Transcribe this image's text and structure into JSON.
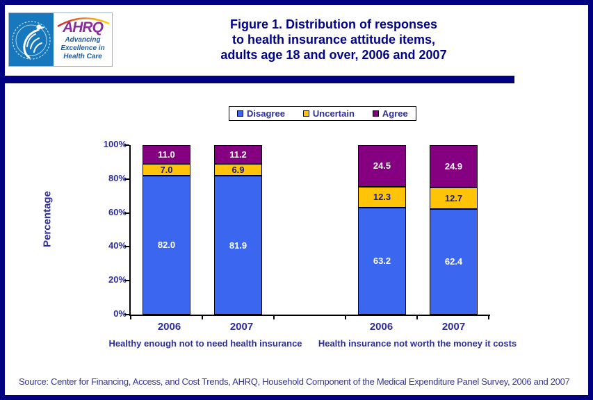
{
  "header": {
    "logo": {
      "hhs_seal": "Department of Health & Human Services USA seal",
      "ahrq_acronym": "AHRQ",
      "ahrq_tagline_lines": [
        "Advancing",
        "Excellence in",
        "Health Care"
      ]
    },
    "title_lines": [
      "Figure 1. Distribution of responses",
      "to health insurance attitude items,",
      "adults age 18 and over, 2006 and 2007"
    ]
  },
  "chart_data": {
    "type": "bar",
    "subtype": "stacked-100",
    "ylabel": "Percentage",
    "xlabel": "",
    "ylim": [
      0,
      100
    ],
    "ytick_labels": [
      "0%",
      "20%",
      "40%",
      "60%",
      "80%",
      "100%"
    ],
    "grid": false,
    "legend_position": "top-center",
    "categories": [
      "2006",
      "2007",
      "2006",
      "2007"
    ],
    "group_labels": [
      "Healthy enough not to need health insurance",
      "Health insurance not worth the money it costs"
    ],
    "series": [
      {
        "name": "Disagree",
        "color": "#3A66F0",
        "label_color": "#FFFFFF",
        "values": [
          82.0,
          81.9,
          63.2,
          62.4
        ],
        "labels": [
          "82.0",
          "81.9",
          "63.2",
          "62.4"
        ]
      },
      {
        "name": "Uncertain",
        "color": "#FFC408",
        "label_color": "#1A1A8C",
        "values": [
          7.0,
          6.9,
          12.3,
          12.7
        ],
        "labels": [
          "7.0",
          "6.9",
          "12.3",
          "12.7"
        ]
      },
      {
        "name": "Agree",
        "color": "#850080",
        "label_color": "#FFFFFF",
        "values": [
          11.0,
          11.2,
          24.5,
          24.9
        ],
        "labels": [
          "11.0",
          "11.2",
          "24.5",
          "24.9"
        ]
      }
    ]
  },
  "colors": {
    "page_border": "#000080",
    "divider": "#000080",
    "title_text": "#00008B",
    "chart_text": "#2E2E9E",
    "source_text": "#333399"
  },
  "source_note": "Source: Center for Financing, Access, and Cost Trends, AHRQ, Household Component of the Medical Expenditure Panel Survey,  2006 and 2007"
}
